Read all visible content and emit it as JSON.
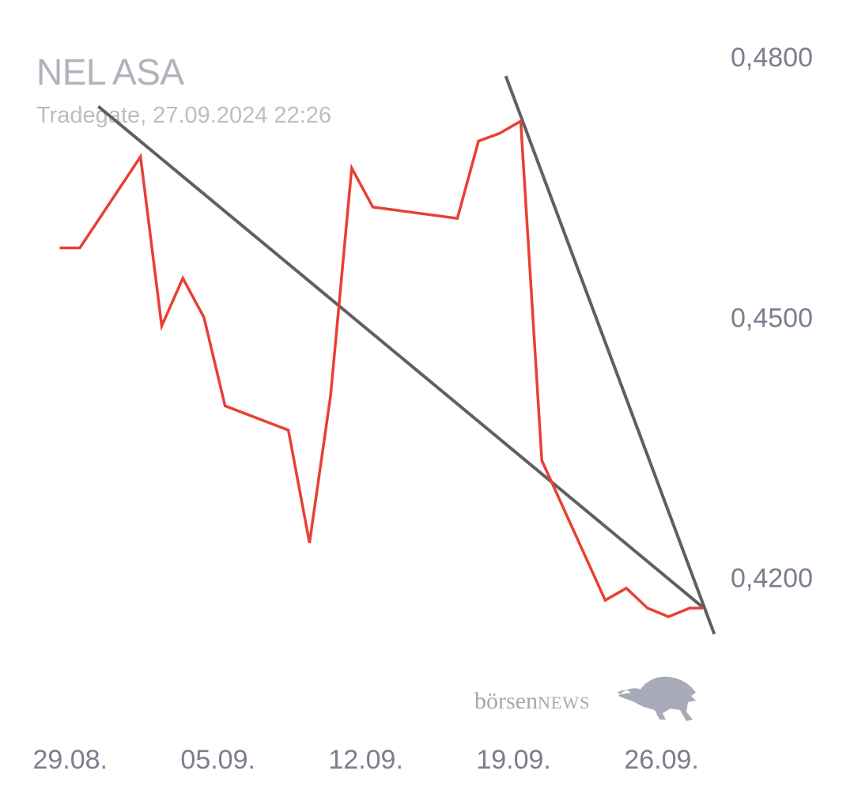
{
  "header": {
    "title": "NEL ASA",
    "subtitle": "Tradegate, 27.09.2024 22:26"
  },
  "logo": {
    "brand_prefix": "börsen",
    "brand_suffix": "NEWS",
    "icon": "bull-icon"
  },
  "colors": {
    "price_line": "#e84033",
    "trend_line": "#606060",
    "axis_text": "#7d7d8f",
    "title_text": "#b2b2bc"
  },
  "chart_data": {
    "type": "line",
    "title": "NEL ASA",
    "subtitle": "Tradegate, 27.09.2024 22:26",
    "ylim": [
      0.4114,
      0.48
    ],
    "yticks": [
      {
        "value": 0.48,
        "label": "0,4800"
      },
      {
        "value": 0.45,
        "label": "0,4500"
      },
      {
        "value": 0.42,
        "label": "0,4200"
      }
    ],
    "xlim": [
      "2024-08-28",
      "2024-09-28"
    ],
    "xticks": [
      {
        "date": "2024-08-29",
        "label": "29.08."
      },
      {
        "date": "2024-09-05",
        "label": "05.09."
      },
      {
        "date": "2024-09-12",
        "label": "12.09."
      },
      {
        "date": "2024-09-19",
        "label": "19.09."
      },
      {
        "date": "2024-09-26",
        "label": "26.09."
      }
    ],
    "grid": false,
    "series": [
      {
        "points": [
          {
            "x": "2024-08-28 12:00",
            "y": 0.458
          },
          {
            "x": "2024-08-29 11:00",
            "y": 0.458
          },
          {
            "x": "2024-09-01 08:00",
            "y": 0.4685
          },
          {
            "x": "2024-09-02 08:00",
            "y": 0.449
          },
          {
            "x": "2024-09-03 08:00",
            "y": 0.4545
          },
          {
            "x": "2024-09-04 08:00",
            "y": 0.45
          },
          {
            "x": "2024-09-05 08:00",
            "y": 0.4398
          },
          {
            "x": "2024-09-08 08:00",
            "y": 0.437
          },
          {
            "x": "2024-09-09 08:00",
            "y": 0.424
          },
          {
            "x": "2024-09-10 08:00",
            "y": 0.441
          },
          {
            "x": "2024-09-11 08:00",
            "y": 0.4672
          },
          {
            "x": "2024-09-12 08:00",
            "y": 0.4627
          },
          {
            "x": "2024-09-16 08:00",
            "y": 0.4614
          },
          {
            "x": "2024-09-17 08:00",
            "y": 0.4703
          },
          {
            "x": "2024-09-18 08:00",
            "y": 0.4712
          },
          {
            "x": "2024-09-19 08:00",
            "y": 0.4726
          },
          {
            "x": "2024-09-20 08:00",
            "y": 0.4335
          },
          {
            "x": "2024-09-23 08:00",
            "y": 0.4174
          },
          {
            "x": "2024-09-24 08:00",
            "y": 0.4188
          },
          {
            "x": "2024-09-25 08:00",
            "y": 0.4165
          },
          {
            "x": "2024-09-26 08:00",
            "y": 0.4155
          },
          {
            "x": "2024-09-27 08:00",
            "y": 0.4165
          },
          {
            "x": "2024-09-27 22:26",
            "y": 0.4165
          }
        ]
      }
    ],
    "trend_lines": [
      {
        "from": {
          "x": "2024-08-30 08:00",
          "y": 0.4743
        },
        "to": {
          "x": "2024-09-28 00:00",
          "y": 0.4165
        }
      },
      {
        "from": {
          "x": "2024-09-18 15:00",
          "y": 0.4778
        },
        "to": {
          "x": "2024-09-28 12:00",
          "y": 0.4135
        }
      }
    ]
  }
}
